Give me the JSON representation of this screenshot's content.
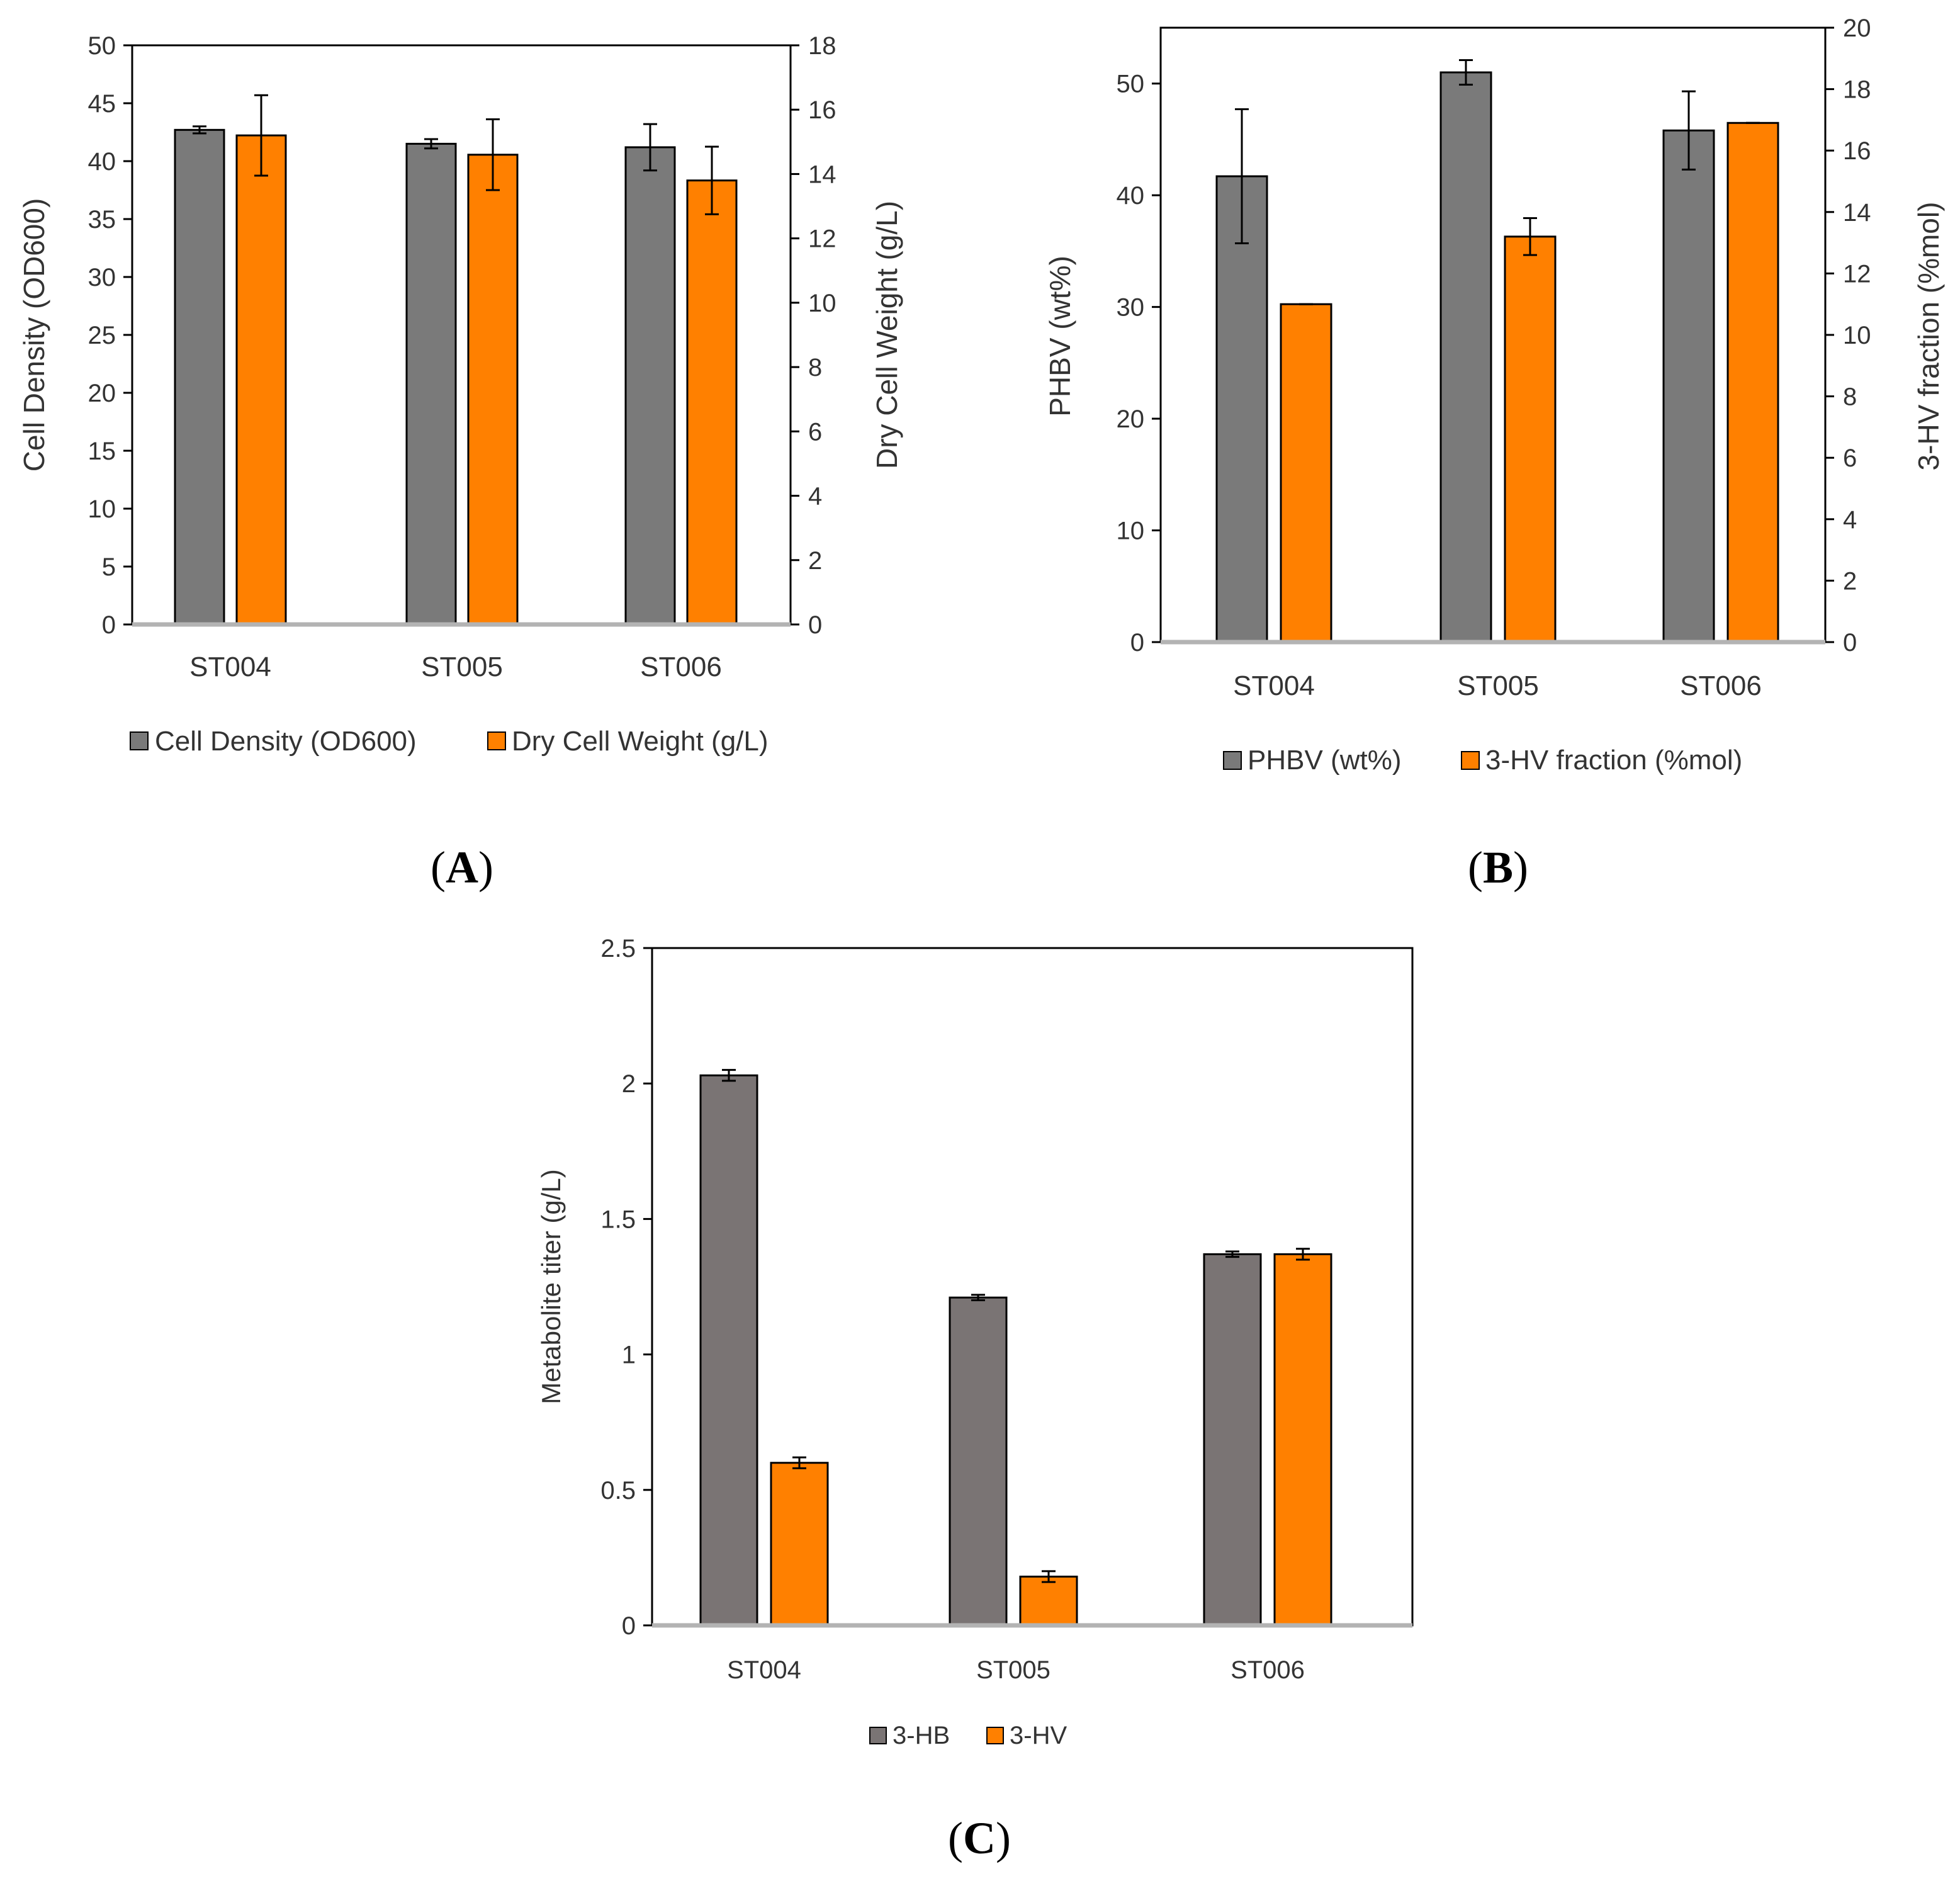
{
  "chart_data": [
    {
      "panel": "A",
      "type": "bar",
      "categories": [
        "ST004",
        "ST005",
        "ST006"
      ],
      "series": [
        {
          "name": "Cell Density (OD600)",
          "axis": "left",
          "color": "#7a7a7a",
          "values": [
            42.7,
            41.5,
            41.2
          ],
          "errors": [
            0.3,
            0.4,
            2.0
          ]
        },
        {
          "name": "Dry Cell Weight (g/L)",
          "axis": "right",
          "color": "#ff8000",
          "values": [
            15.2,
            14.6,
            13.8
          ],
          "errors": [
            1.25,
            1.1,
            1.05
          ]
        }
      ],
      "ylabel": "Cell Density (OD600)",
      "y2label": "Dry Cell Weight (g/L)",
      "ylim": [
        0,
        50
      ],
      "yticks": [
        0,
        5,
        10,
        15,
        20,
        25,
        30,
        35,
        40,
        45,
        50
      ],
      "y2lim": [
        0,
        18
      ],
      "y2ticks": [
        0,
        2,
        4,
        6,
        8,
        10,
        12,
        14,
        16,
        18
      ],
      "grid": false,
      "legend": "bottom"
    },
    {
      "panel": "B",
      "type": "bar",
      "categories": [
        "ST004",
        "ST005",
        "ST006"
      ],
      "series": [
        {
          "name": "PHBV (wt%)",
          "axis": "left",
          "color": "#7a7a7a",
          "values": [
            41.7,
            51.0,
            45.8
          ],
          "errors": [
            6.0,
            1.1,
            3.5
          ]
        },
        {
          "name": "3-HV fraction (%mol)",
          "axis": "right",
          "color": "#ff8000",
          "values": [
            11.0,
            13.2,
            16.9
          ],
          "errors": [
            0.0,
            0.6,
            0.0
          ]
        }
      ],
      "ylabel": "PHBV (wt%)",
      "y2label": "3-HV fraction (%mol)",
      "ylim": [
        0,
        55
      ],
      "yticks": [
        0,
        10,
        20,
        30,
        40,
        50
      ],
      "y2lim": [
        0,
        20
      ],
      "y2ticks": [
        0,
        2,
        4,
        6,
        8,
        10,
        12,
        14,
        16,
        18,
        20
      ],
      "grid": false,
      "legend": "bottom"
    },
    {
      "panel": "C",
      "type": "bar",
      "categories": [
        "ST004",
        "ST005",
        "ST006"
      ],
      "series": [
        {
          "name": "3-HB",
          "axis": "left",
          "color": "#7a7474",
          "values": [
            2.03,
            1.21,
            1.37
          ],
          "errors": [
            0.02,
            0.01,
            0.01
          ]
        },
        {
          "name": "3-HV",
          "axis": "left",
          "color": "#ff8000",
          "values": [
            0.6,
            0.18,
            1.37
          ],
          "errors": [
            0.02,
            0.02,
            0.02
          ]
        }
      ],
      "ylabel": "Metabolite titer (g/L)",
      "ylim": [
        0,
        2.5
      ],
      "yticks": [
        "0",
        "0.5",
        "1",
        "1.5",
        "2",
        "2.5"
      ],
      "grid": false,
      "legend": "bottom"
    }
  ],
  "panel_labels": {
    "A": {
      "open": "(",
      "letter": "A",
      "close": ")"
    },
    "B": {
      "open": "(",
      "letter": "B",
      "close": ")"
    },
    "C": {
      "open": "(",
      "letter": "C",
      "close": ")"
    }
  }
}
